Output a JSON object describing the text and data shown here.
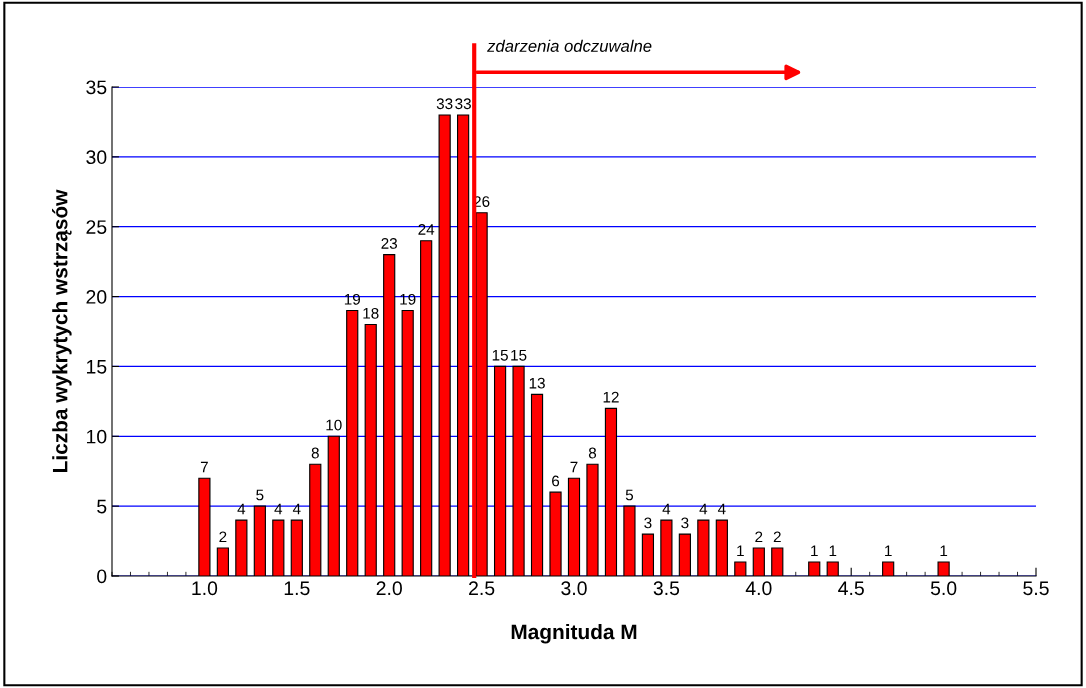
{
  "chart_data": {
    "type": "bar",
    "xlabel": "Magnituda M",
    "ylabel": "Liczba wykrytych wstrząsów",
    "x": [
      1.0,
      1.1,
      1.2,
      1.3,
      1.4,
      1.5,
      1.6,
      1.7,
      1.8,
      1.9,
      2.0,
      2.1,
      2.2,
      2.3,
      2.4,
      2.5,
      2.6,
      2.7,
      2.8,
      2.9,
      3.0,
      3.1,
      3.2,
      3.3,
      3.4,
      3.5,
      3.6,
      3.7,
      3.8,
      3.9,
      4.0,
      4.1,
      4.3,
      4.4,
      4.7,
      5.0
    ],
    "values": [
      7,
      2,
      4,
      5,
      4,
      4,
      8,
      10,
      19,
      18,
      23,
      19,
      24,
      33,
      33,
      26,
      15,
      15,
      13,
      6,
      7,
      8,
      12,
      5,
      3,
      4,
      3,
      4,
      4,
      1,
      2,
      2,
      1,
      1,
      1,
      1
    ],
    "color": "#ff0000",
    "data_labels": true,
    "xlim": [
      0.5,
      5.5
    ],
    "xticks": [
      {
        "value": 1.0,
        "label": "1.0"
      },
      {
        "value": 1.5,
        "label": "1.5"
      },
      {
        "value": 2.0,
        "label": "2.0"
      },
      {
        "value": 2.5,
        "label": "2.5"
      },
      {
        "value": 3.0,
        "label": "3.0"
      },
      {
        "value": 3.5,
        "label": "3.5"
      },
      {
        "value": 4.0,
        "label": "4.0"
      },
      {
        "value": 4.5,
        "label": "4.5"
      },
      {
        "value": 5.0,
        "label": "5.0"
      },
      {
        "value": 5.5,
        "label": "5.5"
      }
    ],
    "ylim": [
      0,
      35
    ],
    "yticks": [
      0,
      5,
      10,
      15,
      20,
      25,
      30,
      35
    ],
    "grid": "y",
    "ref_lines": [
      {
        "axis": "x",
        "value": 2.46,
        "label": "zdarzenia odczuwalne",
        "color": "#ff0000"
      }
    ]
  }
}
